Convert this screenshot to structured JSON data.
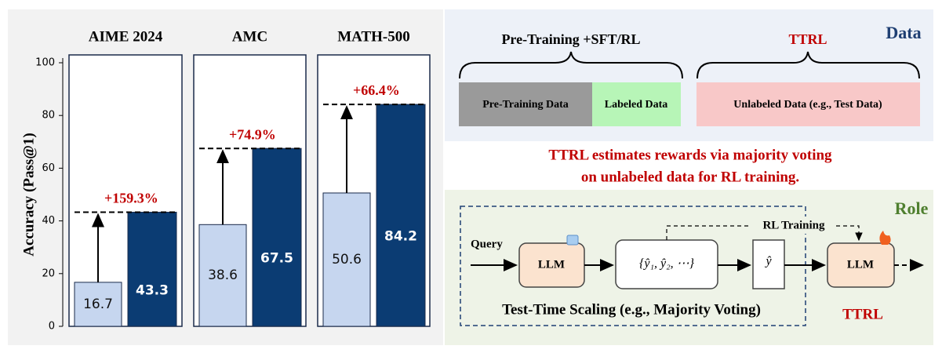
{
  "chart_data": [
    {
      "type": "bar",
      "title": "AIME 2024",
      "ylabel": "Accuracy (Pass@1)",
      "ylim": [
        0,
        100
      ],
      "yticks": [
        0,
        20,
        40,
        60,
        80,
        100
      ],
      "series": [
        {
          "color": "#c6d6ef",
          "values": [
            16.7
          ]
        },
        {
          "color": "#0b3c73",
          "values": [
            43.3
          ]
        }
      ],
      "annotation": "+159.3%"
    },
    {
      "type": "bar",
      "title": "AMC",
      "ylim": [
        0,
        100
      ],
      "series": [
        {
          "color": "#c6d6ef",
          "values": [
            38.6
          ]
        },
        {
          "color": "#0b3c73",
          "values": [
            67.5
          ]
        }
      ],
      "annotation": "+74.9%"
    },
    {
      "type": "bar",
      "title": "MATH-500",
      "ylim": [
        0,
        100
      ],
      "series": [
        {
          "color": "#c6d6ef",
          "values": [
            50.6
          ]
        },
        {
          "color": "#0b3c73",
          "values": [
            84.2
          ]
        }
      ],
      "annotation": "+66.4%"
    }
  ],
  "diagram": {
    "data_title": "Data",
    "pretraining": "Pre-Training +SFT/RL",
    "ttrl_top": "TTRL",
    "box_pretraining": "Pre-Training Data",
    "box_labeled": "Labeled Data",
    "box_unlabeled": "Unlabeled Data (e.g., Test Data)",
    "caption": [
      "TTRL estimates rewards via majority voting",
      "on unlabeled data for RL training."
    ],
    "role_title": "Role",
    "query": "Query",
    "llm1": "LLM",
    "outputs": "{ŷ₁, ŷ₂, ⋯}",
    "answer": "ŷ",
    "rl_training": "RL Training",
    "llm2": "LLM",
    "tts": "Test-Time Scaling (e.g., Majority Voting)",
    "ttrl_bottom": "TTRL"
  }
}
